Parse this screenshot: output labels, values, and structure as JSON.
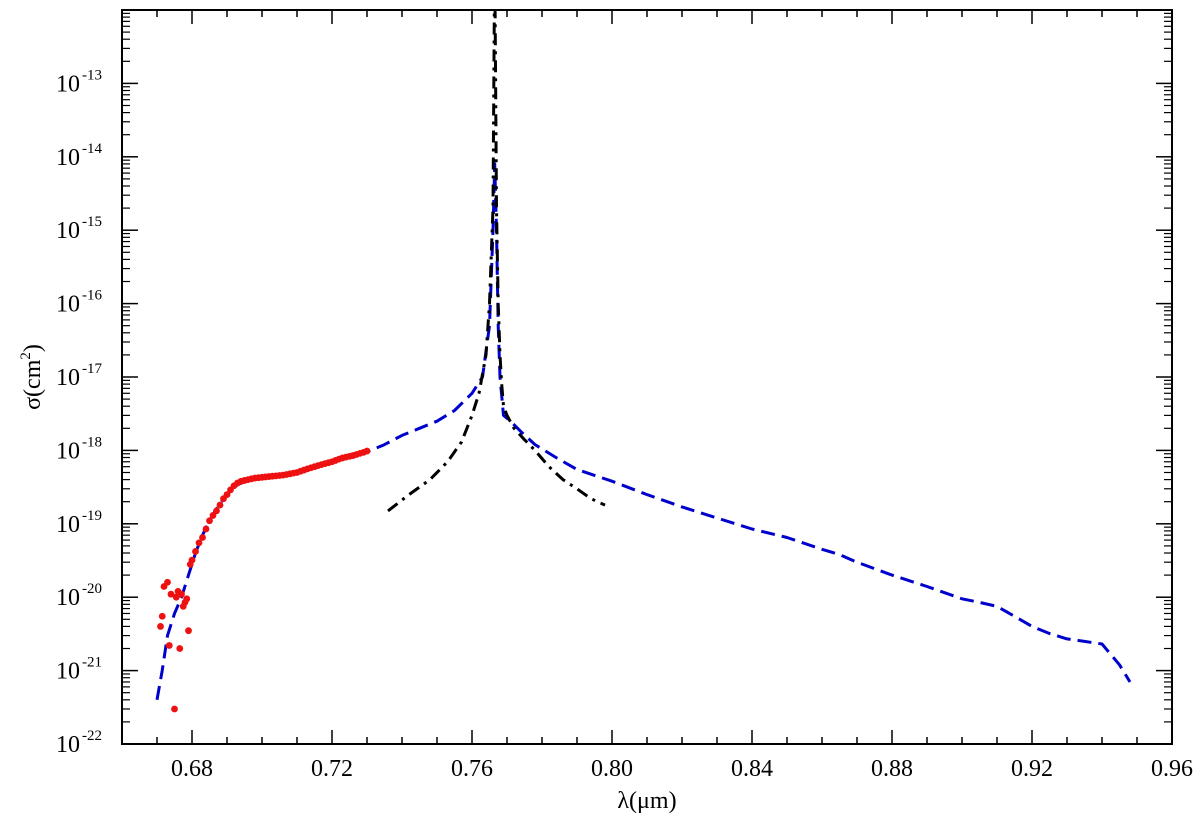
{
  "chart_data": {
    "type": "line",
    "title": "",
    "xlabel": "λ(μm)",
    "ylabel": "σ(cm²)",
    "ylabel_parts": {
      "main": "σ(cm",
      "sup": "2",
      "close": ")"
    },
    "xlim": [
      0.66,
      0.96
    ],
    "ylim": [
      1e-22,
      1e-12
    ],
    "yscale": "log",
    "grid": false,
    "legend": "none",
    "x_ticks": [
      "0.68",
      "0.72",
      "0.76",
      "0.80",
      "0.84",
      "0.88",
      "0.92",
      "0.96"
    ],
    "y_ticks": [
      {
        "base": "10",
        "exp": "-22"
      },
      {
        "base": "10",
        "exp": "-21"
      },
      {
        "base": "10",
        "exp": "-20"
      },
      {
        "base": "10",
        "exp": "-19"
      },
      {
        "base": "10",
        "exp": "-18"
      },
      {
        "base": "10",
        "exp": "-17"
      },
      {
        "base": "10",
        "exp": "-16"
      },
      {
        "base": "10",
        "exp": "-15"
      },
      {
        "base": "10",
        "exp": "-14"
      },
      {
        "base": "10",
        "exp": "-13"
      }
    ],
    "series": [
      {
        "style": "dashed",
        "color": "#0000cc",
        "x": [
          0.67,
          0.6715,
          0.673,
          0.675,
          0.677,
          0.679,
          0.681,
          0.683,
          0.685,
          0.687,
          0.689,
          0.691,
          0.693,
          0.696,
          0.7,
          0.705,
          0.71,
          0.715,
          0.72,
          0.725,
          0.73,
          0.735,
          0.74,
          0.745,
          0.75,
          0.755,
          0.76,
          0.763,
          0.765,
          0.766,
          0.7665,
          0.767,
          0.7675,
          0.768,
          0.769,
          0.771,
          0.774,
          0.778,
          0.784,
          0.79,
          0.8,
          0.81,
          0.82,
          0.83,
          0.84,
          0.85,
          0.86,
          0.865,
          0.87,
          0.88,
          0.89,
          0.9,
          0.905,
          0.91,
          0.915,
          0.92,
          0.925,
          0.93,
          0.935,
          0.94,
          0.945,
          0.948
        ],
        "y": [
          4e-22,
          1e-21,
          3e-21,
          6e-21,
          1e-20,
          2e-20,
          4e-20,
          7e-20,
          1.1e-19,
          1.6e-19,
          2.2e-19,
          2.8e-19,
          3.4e-19,
          3.9e-19,
          4.2e-19,
          4.5e-19,
          5e-19,
          6e-19,
          7e-19,
          8e-19,
          9.5e-19,
          1.2e-18,
          1.6e-18,
          2e-18,
          2.5e-18,
          3.5e-18,
          6e-18,
          1e-17,
          5e-17,
          1e-15,
          8e-15,
          1e-15,
          5e-17,
          1e-17,
          3e-18,
          2.5e-18,
          1.8e-18,
          1.2e-18,
          8e-19,
          5.5e-19,
          3.8e-19,
          2.5e-19,
          1.7e-19,
          1.2e-19,
          8.5e-20,
          6.5e-20,
          4.5e-20,
          3.8e-20,
          3e-20,
          2e-20,
          1.4e-20,
          9.5e-21,
          8.5e-21,
          7.5e-21,
          5.5e-21,
          4e-21,
          3.2e-21,
          2.7e-21,
          2.5e-21,
          2.3e-21,
          1.2e-21,
          7e-22
        ]
      },
      {
        "style": "dash-dot",
        "color": "#000000",
        "x": [
          0.736,
          0.742,
          0.748,
          0.753,
          0.757,
          0.76,
          0.762,
          0.764,
          0.765,
          0.766,
          0.7665,
          0.767,
          0.7675,
          0.768,
          0.7685,
          0.769,
          0.77,
          0.772,
          0.775,
          0.778,
          0.782,
          0.786,
          0.79,
          0.794,
          0.798
        ],
        "y": [
          1.5e-19,
          2.5e-19,
          4e-19,
          7e-19,
          1.3e-18,
          3e-18,
          6e-18,
          2e-17,
          1e-16,
          2e-15,
          6e-12,
          2e-15,
          1e-16,
          2e-17,
          8e-18,
          4e-18,
          3e-18,
          2e-18,
          1.4e-18,
          1e-18,
          6e-19,
          4e-19,
          3e-19,
          2.2e-19,
          1.8e-19
        ]
      },
      {
        "style": "markers",
        "color": "#ee1111",
        "x": [
          0.671,
          0.6715,
          0.672,
          0.673,
          0.6735,
          0.674,
          0.675,
          0.6755,
          0.676,
          0.6765,
          0.677,
          0.6775,
          0.678,
          0.6785,
          0.679,
          0.6795,
          0.68,
          0.681,
          0.682,
          0.683,
          0.684,
          0.685,
          0.686,
          0.687,
          0.688,
          0.689,
          0.69,
          0.691,
          0.692,
          0.693,
          0.694,
          0.695,
          0.696,
          0.697,
          0.698,
          0.699,
          0.7,
          0.701,
          0.702,
          0.703,
          0.704,
          0.705,
          0.706,
          0.707,
          0.708,
          0.709,
          0.71,
          0.711,
          0.712,
          0.713,
          0.714,
          0.715,
          0.716,
          0.717,
          0.718,
          0.719,
          0.72,
          0.721,
          0.722,
          0.723,
          0.724,
          0.725,
          0.726,
          0.727,
          0.728,
          0.729,
          0.73
        ],
        "y": [
          4e-21,
          5.5e-21,
          1.4e-20,
          1.6e-20,
          2.2e-21,
          1.1e-20,
          3e-22,
          1e-20,
          1.2e-20,
          2e-21,
          1.1e-20,
          7.5e-21,
          8.5e-21,
          9.5e-21,
          3.5e-21,
          2.8e-20,
          3.2e-20,
          4.2e-20,
          5.5e-20,
          6.5e-20,
          8.5e-20,
          1.1e-19,
          1.3e-19,
          1.5e-19,
          1.8e-19,
          2.2e-19,
          2.5e-19,
          2.9e-19,
          3.3e-19,
          3.6e-19,
          3.8e-19,
          3.9e-19,
          4e-19,
          4.1e-19,
          4.2e-19,
          4.25e-19,
          4.3e-19,
          4.35e-19,
          4.4e-19,
          4.45e-19,
          4.5e-19,
          4.55e-19,
          4.6e-19,
          4.7e-19,
          4.8e-19,
          4.9e-19,
          5e-19,
          5.2e-19,
          5.4e-19,
          5.6e-19,
          5.8e-19,
          6e-19,
          6.2e-19,
          6.4e-19,
          6.6e-19,
          6.8e-19,
          7e-19,
          7.3e-19,
          7.6e-19,
          7.9e-19,
          8.1e-19,
          8.3e-19,
          8.5e-19,
          8.8e-19,
          9.1e-19,
          9.4e-19,
          9.8e-19
        ]
      }
    ]
  }
}
